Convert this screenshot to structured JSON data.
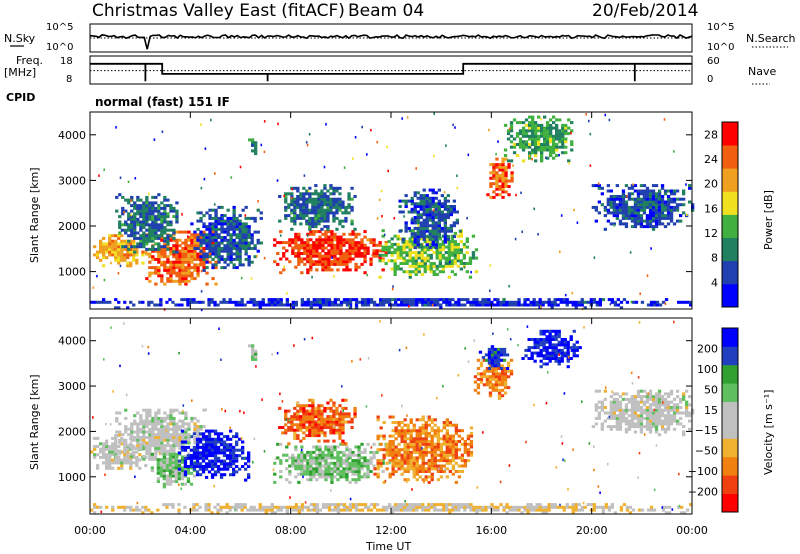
{
  "header": {
    "title": "Christmas Valley East (fitACF)",
    "beam": "Beam 04",
    "date": "20/Feb/2014"
  },
  "status_panels": {
    "nsky": {
      "label": "N.Sky",
      "ticks_left": [
        "10^5",
        "10^0"
      ],
      "ticks_right": [
        "10^5",
        "10^0"
      ],
      "right_label": "N.Search"
    },
    "freq": {
      "label": "Freq.",
      "unit": "[MHz]",
      "ticks_left": [
        "18",
        "8"
      ],
      "ticks_right": [
        "60",
        "0"
      ],
      "right_label": "Nave"
    },
    "cpid": {
      "label": "CPID",
      "text": "normal (fast) 151 IF"
    }
  },
  "axes": {
    "x_label": "Time UT",
    "x_ticks": [
      "00:00",
      "04:00",
      "08:00",
      "12:00",
      "16:00",
      "20:00",
      "00:00"
    ],
    "y_label": "Slant Range [km]",
    "y_ticks": [
      "1000",
      "2000",
      "3000",
      "4000"
    ]
  },
  "chart_data": [
    {
      "type": "heatmap",
      "name": "power",
      "x_range_hours": [
        0,
        24
      ],
      "y_range_km": [
        180,
        4500
      ],
      "colorbar_label": "Power [dB]",
      "colorbar_ticks": [
        "4",
        "8",
        "12",
        "16",
        "20",
        "24",
        "28"
      ],
      "colorbar_range": [
        0,
        30
      ],
      "colors": [
        "#0000ff",
        "#2040b0",
        "#208060",
        "#40b040",
        "#f0e020",
        "#f0a020",
        "#f06010",
        "#ff0000"
      ],
      "regions": [
        {
          "t": [
            0.0,
            2.2
          ],
          "r": [
            1100,
            1800
          ],
          "v": 20
        },
        {
          "t": [
            2.2,
            5.0
          ],
          "r": [
            700,
            1900
          ],
          "v": 24
        },
        {
          "t": [
            1.0,
            3.5
          ],
          "r": [
            1400,
            2700
          ],
          "v": 8
        },
        {
          "t": [
            4.0,
            6.8
          ],
          "r": [
            1000,
            2400
          ],
          "v": 6
        },
        {
          "t": [
            6.3,
            6.6
          ],
          "r": [
            3500,
            3900
          ],
          "v": 10
        },
        {
          "t": [
            7.3,
            11.8
          ],
          "r": [
            950,
            1900
          ],
          "v": 26
        },
        {
          "t": [
            7.5,
            10.5
          ],
          "r": [
            1900,
            2900
          ],
          "v": 8
        },
        {
          "t": [
            11.5,
            15.4
          ],
          "r": [
            850,
            1900
          ],
          "v": 14
        },
        {
          "t": [
            12.3,
            14.7
          ],
          "r": [
            1500,
            2800
          ],
          "v": 6
        },
        {
          "t": [
            15.8,
            16.8
          ],
          "r": [
            2600,
            3500
          ],
          "v": 24
        },
        {
          "t": [
            16.5,
            19.2
          ],
          "r": [
            3400,
            4400
          ],
          "v": 12
        },
        {
          "t": [
            20.0,
            24.0
          ],
          "r": [
            1900,
            2900
          ],
          "v": 6
        },
        {
          "t": [
            0.0,
            24.0
          ],
          "r": [
            180,
            400
          ],
          "v": 4
        }
      ]
    },
    {
      "type": "heatmap",
      "name": "velocity",
      "x_range_hours": [
        0,
        24
      ],
      "y_range_km": [
        180,
        4500
      ],
      "colorbar_label": "Velocity [m s⁻¹]",
      "colorbar_ticks": [
        "200",
        "100",
        "50",
        "15",
        "−15",
        "−50",
        "−100",
        "−200"
      ],
      "colorbar_range": [
        -250,
        250
      ],
      "colors": [
        "#ff0000",
        "#f04010",
        "#f08010",
        "#f0b030",
        "#c0c0c0",
        "#c0c0c0",
        "#60c060",
        "#30a030",
        "#2040c0",
        "#0000ff"
      ],
      "regions": [
        {
          "t": [
            0.0,
            2.3
          ],
          "r": [
            1100,
            1900
          ],
          "v": 0
        },
        {
          "t": [
            1.0,
            4.5
          ],
          "r": [
            1300,
            2500
          ],
          "v": 5
        },
        {
          "t": [
            2.3,
            4.2
          ],
          "r": [
            750,
            1500
          ],
          "v": 70
        },
        {
          "t": [
            3.5,
            6.3
          ],
          "r": [
            900,
            2000
          ],
          "v": 220
        },
        {
          "t": [
            6.3,
            6.6
          ],
          "r": [
            3500,
            3900
          ],
          "v": 60
        },
        {
          "t": [
            7.3,
            11.8
          ],
          "r": [
            850,
            1700
          ],
          "v": 60
        },
        {
          "t": [
            7.5,
            10.5
          ],
          "r": [
            1700,
            2700
          ],
          "v": -150
        },
        {
          "t": [
            11.3,
            15.2
          ],
          "r": [
            850,
            2300
          ],
          "v": -120
        },
        {
          "t": [
            15.3,
            16.8
          ],
          "r": [
            2700,
            3600
          ],
          "v": -120
        },
        {
          "t": [
            15.5,
            16.7
          ],
          "r": [
            3300,
            3900
          ],
          "v": 200
        },
        {
          "t": [
            17.2,
            19.5
          ],
          "r": [
            3400,
            4200
          ],
          "v": 220
        },
        {
          "t": [
            20.0,
            24.0
          ],
          "r": [
            1900,
            2900
          ],
          "v": 0
        },
        {
          "t": [
            0.0,
            24.0
          ],
          "r": [
            180,
            400
          ],
          "v": -30
        }
      ]
    }
  ]
}
